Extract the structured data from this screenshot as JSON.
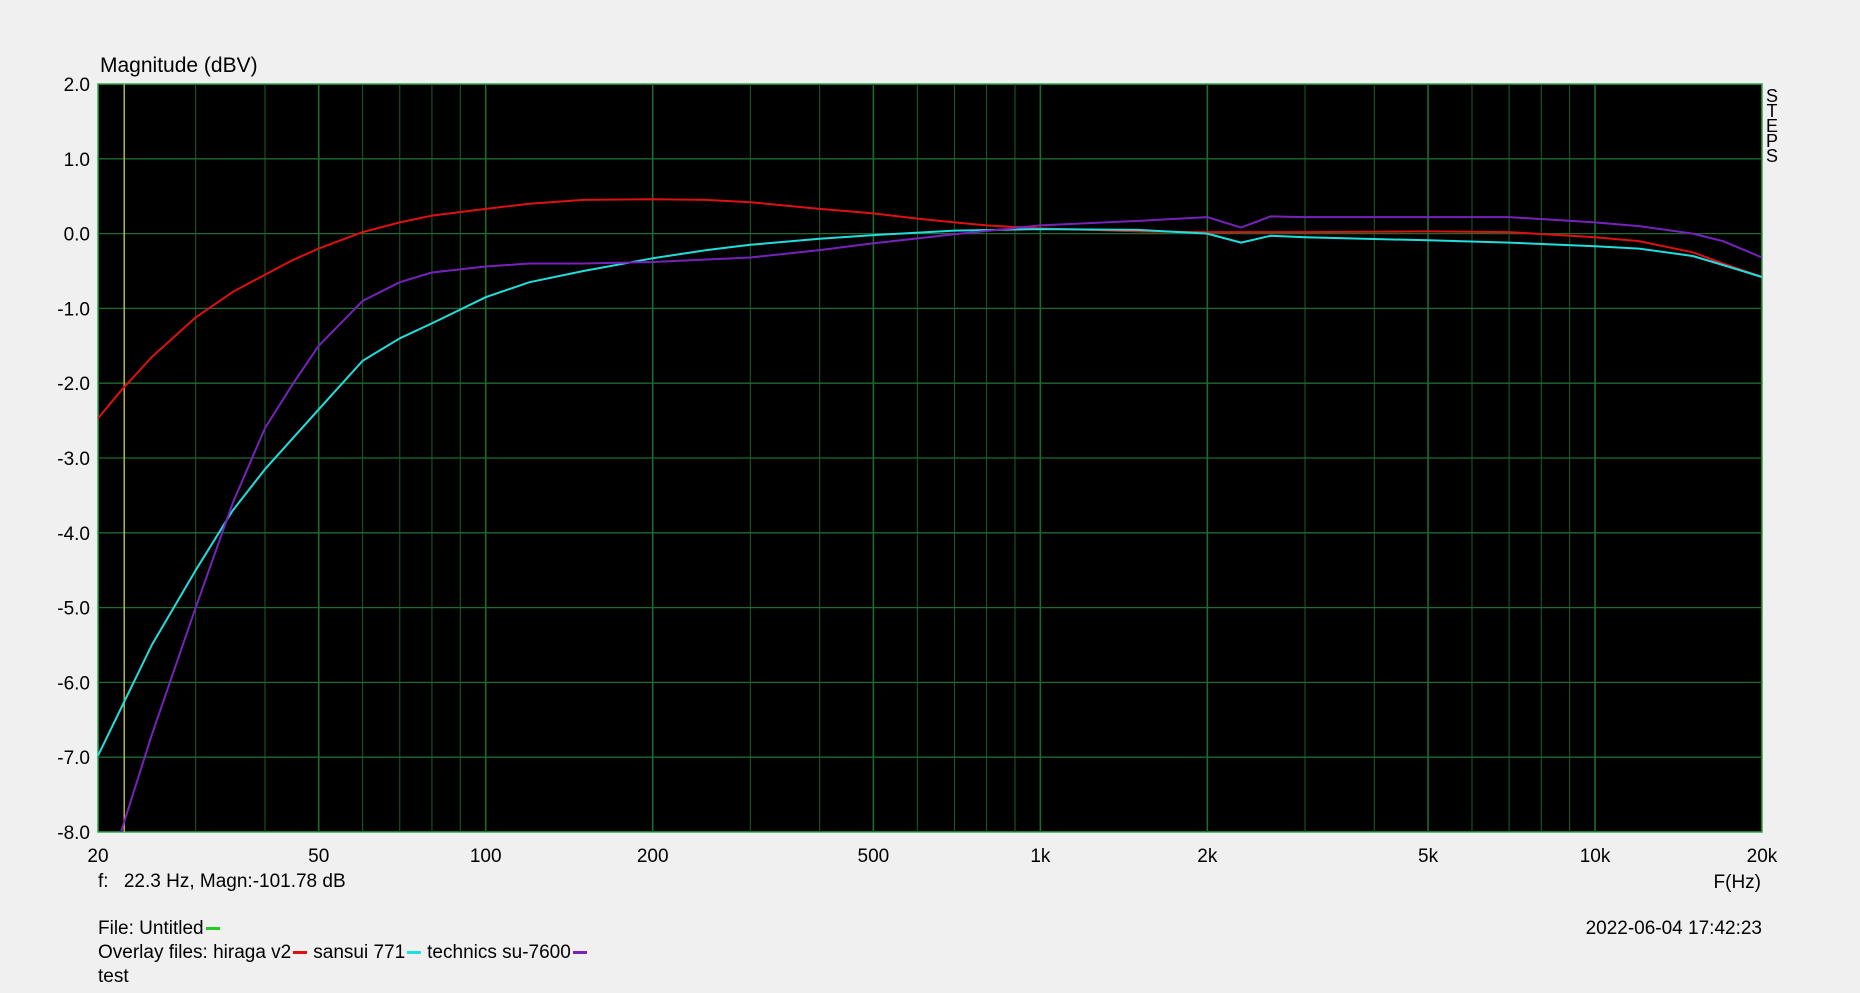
{
  "chart_data": {
    "type": "line",
    "title": "",
    "ylabel": "Magnitude (dBV)",
    "xlabel": "F(Hz)",
    "x_scale": "log",
    "xlim": [
      20,
      20000
    ],
    "ylim": [
      -8.0,
      2.0
    ],
    "grid": true,
    "x_ticks": [
      {
        "value": 20,
        "label": "20"
      },
      {
        "value": 50,
        "label": "50"
      },
      {
        "value": 100,
        "label": "100"
      },
      {
        "value": 200,
        "label": "200"
      },
      {
        "value": 500,
        "label": "500"
      },
      {
        "value": 1000,
        "label": "1k"
      },
      {
        "value": 2000,
        "label": "2k"
      },
      {
        "value": 5000,
        "label": "5k"
      },
      {
        "value": 10000,
        "label": "10k"
      },
      {
        "value": 20000,
        "label": "20k"
      }
    ],
    "y_ticks": [
      {
        "value": 2,
        "label": "2.0"
      },
      {
        "value": 1,
        "label": "1.0"
      },
      {
        "value": 0,
        "label": "0.0"
      },
      {
        "value": -1,
        "label": "-1.0"
      },
      {
        "value": -2,
        "label": "-2.0"
      },
      {
        "value": -3,
        "label": "-3.0"
      },
      {
        "value": -4,
        "label": "-4.0"
      },
      {
        "value": -5,
        "label": "-5.0"
      },
      {
        "value": -6,
        "label": "-6.0"
      },
      {
        "value": -7,
        "label": "-7.0"
      },
      {
        "value": -8,
        "label": "-8.0"
      }
    ],
    "side_label": "STEPS",
    "cursor": {
      "x": 22.3
    },
    "series": [
      {
        "name": "hiraga v2",
        "color": "#dd1111",
        "points": [
          [
            20,
            -2.47
          ],
          [
            22,
            -2.1
          ],
          [
            25,
            -1.65
          ],
          [
            30,
            -1.12
          ],
          [
            35,
            -0.78
          ],
          [
            40,
            -0.55
          ],
          [
            45,
            -0.35
          ],
          [
            50,
            -0.2
          ],
          [
            60,
            0.02
          ],
          [
            70,
            0.15
          ],
          [
            80,
            0.24
          ],
          [
            100,
            0.33
          ],
          [
            120,
            0.4
          ],
          [
            150,
            0.45
          ],
          [
            200,
            0.46
          ],
          [
            250,
            0.45
          ],
          [
            300,
            0.42
          ],
          [
            400,
            0.33
          ],
          [
            500,
            0.27
          ],
          [
            600,
            0.2
          ],
          [
            700,
            0.15
          ],
          [
            800,
            0.11
          ],
          [
            1000,
            0.07
          ],
          [
            1500,
            0.03
          ],
          [
            2000,
            0.02
          ],
          [
            3000,
            0.02
          ],
          [
            5000,
            0.03
          ],
          [
            7000,
            0.02
          ],
          [
            10000,
            -0.05
          ],
          [
            12000,
            -0.1
          ],
          [
            15000,
            -0.25
          ],
          [
            17000,
            -0.4
          ],
          [
            20000,
            -0.58
          ]
        ]
      },
      {
        "name": "sansui 771",
        "color": "#22dddd",
        "points": [
          [
            20,
            -6.98
          ],
          [
            25,
            -5.5
          ],
          [
            30,
            -4.5
          ],
          [
            35,
            -3.7
          ],
          [
            40,
            -3.15
          ],
          [
            50,
            -2.35
          ],
          [
            60,
            -1.7
          ],
          [
            70,
            -1.4
          ],
          [
            80,
            -1.2
          ],
          [
            100,
            -0.85
          ],
          [
            120,
            -0.65
          ],
          [
            150,
            -0.5
          ],
          [
            200,
            -0.33
          ],
          [
            250,
            -0.22
          ],
          [
            300,
            -0.15
          ],
          [
            400,
            -0.07
          ],
          [
            500,
            -0.02
          ],
          [
            700,
            0.04
          ],
          [
            1000,
            0.06
          ],
          [
            1500,
            0.05
          ],
          [
            2000,
            0.0
          ],
          [
            2300,
            -0.12
          ],
          [
            2600,
            -0.03
          ],
          [
            3000,
            -0.05
          ],
          [
            5000,
            -0.09
          ],
          [
            7000,
            -0.12
          ],
          [
            10000,
            -0.17
          ],
          [
            12000,
            -0.2
          ],
          [
            15000,
            -0.3
          ],
          [
            17000,
            -0.42
          ],
          [
            20000,
            -0.58
          ]
        ]
      },
      {
        "name": "technics su-7600",
        "color": "#7722bb",
        "points": [
          [
            22,
            -8.0
          ],
          [
            25,
            -6.7
          ],
          [
            30,
            -5.0
          ],
          [
            35,
            -3.6
          ],
          [
            40,
            -2.6
          ],
          [
            45,
            -2.0
          ],
          [
            50,
            -1.5
          ],
          [
            60,
            -0.9
          ],
          [
            70,
            -0.65
          ],
          [
            80,
            -0.52
          ],
          [
            100,
            -0.44
          ],
          [
            120,
            -0.4
          ],
          [
            150,
            -0.4
          ],
          [
            200,
            -0.38
          ],
          [
            300,
            -0.32
          ],
          [
            400,
            -0.22
          ],
          [
            500,
            -0.13
          ],
          [
            700,
            -0.01
          ],
          [
            1000,
            0.11
          ],
          [
            1500,
            0.17
          ],
          [
            2000,
            0.22
          ],
          [
            2300,
            0.08
          ],
          [
            2600,
            0.23
          ],
          [
            3000,
            0.22
          ],
          [
            5000,
            0.22
          ],
          [
            7000,
            0.22
          ],
          [
            10000,
            0.15
          ],
          [
            12000,
            0.1
          ],
          [
            15000,
            0.0
          ],
          [
            17000,
            -0.1
          ],
          [
            20000,
            -0.32
          ]
        ]
      }
    ]
  },
  "cursor_readout": {
    "label": "f:",
    "text": "22.3 Hz, Magn:-101.78 dB"
  },
  "footer": {
    "file_label": "File: Untitled",
    "file_color": "#22cc22",
    "overlay_label": "Overlay files: hiraga v2",
    "overlay_2": "sansui 771",
    "overlay_3": "technics su-7600",
    "note": "test",
    "timestamp": "2022-06-04 17:42:23"
  },
  "colors": {
    "plot_bg": "#000000",
    "grid": "#1d6b2e",
    "border": "#2fa64a",
    "cursor": "#b5b53a"
  }
}
